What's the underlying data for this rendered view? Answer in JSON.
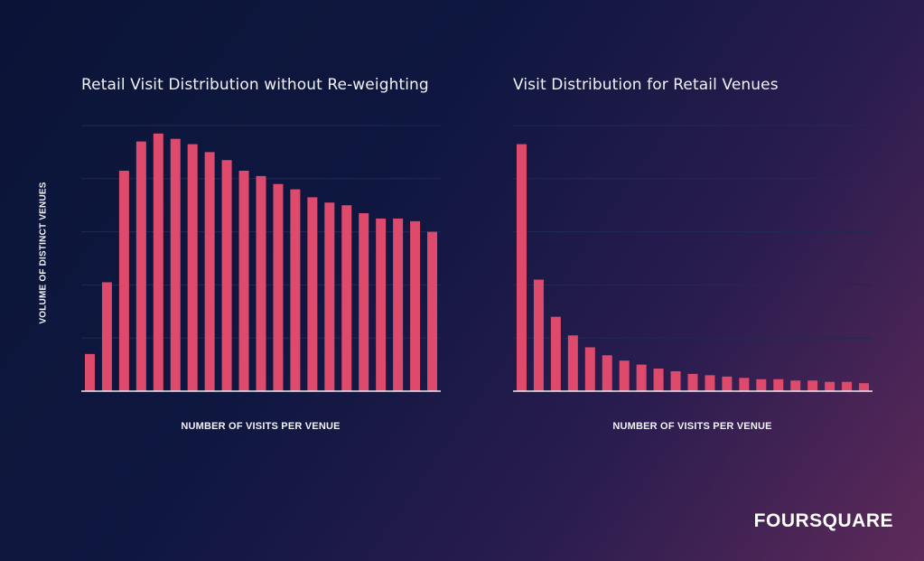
{
  "brand": {
    "name": "FOURSQUARE"
  },
  "colors": {
    "bar": "#de4a6b",
    "grid": "#1f2a55",
    "axis": "#e9e9f2"
  },
  "chart_data": [
    {
      "type": "bar",
      "title": "Retail Visit Distribution without Re-weighting",
      "xlabel": "NUMBER OF VISITS PER VENUE",
      "ylabel": "VOLUME OF DISTINCT VENUES",
      "ylim": [
        0,
        100
      ],
      "grid": true,
      "values": [
        14,
        41,
        83,
        94,
        97,
        95,
        93,
        90,
        87,
        83,
        81,
        78,
        76,
        73,
        71,
        70,
        67,
        65,
        65,
        64,
        60
      ]
    },
    {
      "type": "bar",
      "title": "Visit Distribution for Retail Venues",
      "xlabel": "NUMBER OF VISITS PER VENUE",
      "ylabel": "",
      "ylim": [
        0,
        100
      ],
      "grid": true,
      "values": [
        93,
        42,
        28,
        21,
        16.5,
        13.5,
        11.5,
        10,
        8.5,
        7.5,
        6.5,
        6,
        5.5,
        5,
        4.5,
        4.5,
        4,
        4,
        3.5,
        3.5,
        3
      ]
    }
  ]
}
